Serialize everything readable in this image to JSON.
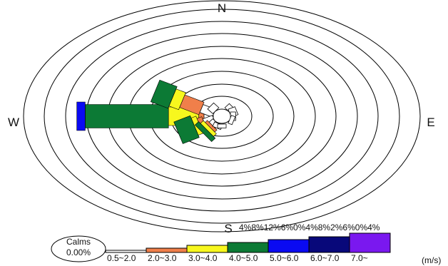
{
  "chart_data": {
    "type": "windrose",
    "directions": {
      "north": "N",
      "south": "S",
      "east": "E",
      "west": "W"
    },
    "radial_scale": "4%8%12%6%0%4%8%2%6%0%4%",
    "calms": {
      "label": "Calms",
      "value": "0.00%"
    },
    "speed_bins": [
      {
        "label": "0.5~2.0",
        "color": "#ffffff"
      },
      {
        "label": "2.0~3.0",
        "color": "#f07f4a"
      },
      {
        "label": "3.0~4.0",
        "color": "#f7f71e"
      },
      {
        "label": "4.0~5.0",
        "color": "#0c7a35"
      },
      {
        "label": "5.0~6.0",
        "color": "#0a0af2"
      },
      {
        "label": "6.0~7.0",
        "color": "#08087a"
      },
      {
        "label": "7.0~",
        "color": "#7a18ef"
      }
    ],
    "units": "(m/s)",
    "sectors": [
      {
        "direction": "W",
        "angle_deg": 270,
        "values": [
          1.8,
          1.0,
          5.8,
          16.0,
          1.6,
          0,
          0
        ]
      },
      {
        "direction": "WNW",
        "angle_deg": 292.5,
        "values": [
          2.6,
          4.0,
          2.0,
          3.6,
          0,
          0,
          0
        ]
      },
      {
        "direction": "WSW",
        "angle_deg": 247.5,
        "values": [
          2.0,
          1.0,
          1.0,
          3.4,
          0,
          0,
          0
        ]
      },
      {
        "direction": "SW",
        "angle_deg": 225,
        "values": [
          1.0,
          0.6,
          0.8,
          1.0,
          0,
          0,
          0
        ]
      },
      {
        "direction": "NW",
        "angle_deg": 315,
        "values": [
          1.4,
          0,
          0,
          0,
          0,
          0,
          0
        ]
      },
      {
        "direction": "SSW",
        "angle_deg": 202.5,
        "values": [
          1.0,
          0,
          0,
          0,
          0,
          0,
          0
        ]
      },
      {
        "direction": "NE",
        "angle_deg": 45,
        "values": [
          1.2,
          0,
          0,
          0,
          0,
          0,
          0
        ]
      },
      {
        "direction": "ENE",
        "angle_deg": 67.5,
        "values": [
          1.4,
          0,
          0,
          0,
          0,
          0,
          0
        ]
      },
      {
        "direction": "E",
        "angle_deg": 90,
        "values": [
          1.0,
          0,
          0,
          0,
          0,
          0,
          0
        ]
      },
      {
        "direction": "ESE",
        "angle_deg": 112.5,
        "values": [
          0.8,
          0,
          0,
          0,
          0,
          0,
          0
        ]
      },
      {
        "direction": "S",
        "angle_deg": 180,
        "values": [
          0.8,
          0,
          0,
          0,
          0,
          0,
          0
        ]
      }
    ]
  }
}
